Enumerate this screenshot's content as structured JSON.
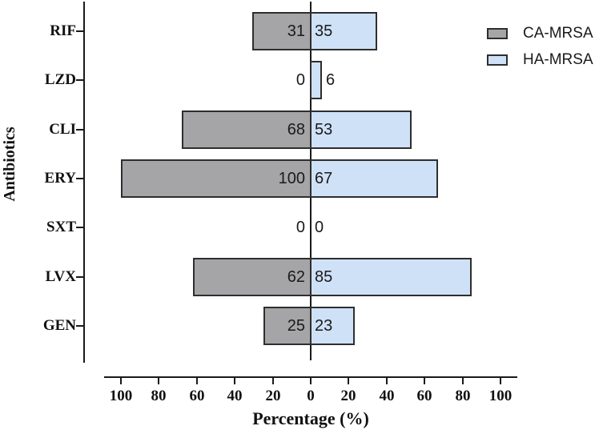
{
  "chart_data": {
    "type": "bar",
    "orientation": "diverging-horizontal",
    "title": "",
    "xlabel": "Percentage (%)",
    "ylabel": "Antibiotics",
    "categories": [
      "RIF",
      "LZD",
      "CLI",
      "ERY",
      "SXT",
      "LVX",
      "GEN"
    ],
    "series": [
      {
        "name": "CA-MRSA",
        "side": "left",
        "color": "#a5a5a7",
        "values": [
          31,
          0,
          68,
          100,
          0,
          62,
          25
        ]
      },
      {
        "name": "HA-MRSA",
        "side": "right",
        "color": "#cfe1f7",
        "values": [
          35,
          6,
          53,
          67,
          0,
          85,
          23
        ]
      }
    ],
    "x_ticks": [
      "100",
      "80",
      "60",
      "40",
      "20",
      "0",
      "20",
      "40",
      "60",
      "80",
      "100"
    ],
    "xlim": [
      -100,
      100
    ],
    "grid": "off",
    "legend_position": "top-right",
    "bar_border_color": "#2e2e2e",
    "axis_color": "#1a1a1a"
  }
}
